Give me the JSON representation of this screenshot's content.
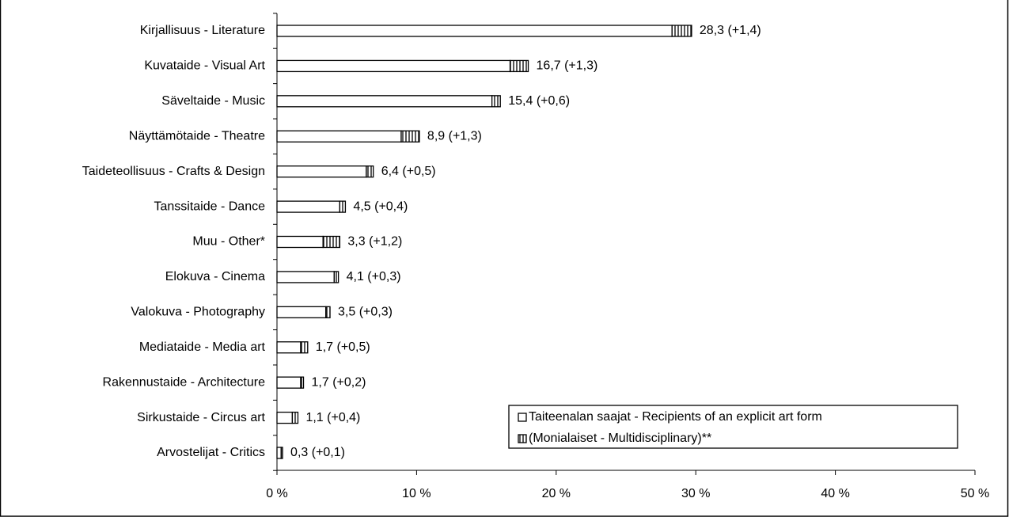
{
  "chart_data": {
    "type": "stacked-bar-horizontal",
    "categories": [
      "Kirjallisuus - Literature",
      "Kuvataide - Visual Art",
      "Säveltaide - Music",
      "Näyttämötaide - Theatre",
      "Taideteollisuus - Crafts & Design",
      "Tanssitaide - Dance",
      "Muu - Other*",
      "Elokuva - Cinema",
      "Valokuva - Photography",
      "Mediataide - Media art",
      "Rakennustaide - Architecture",
      "Sirkustaide - Circus art",
      "Arvostelijat - Critics"
    ],
    "series": [
      {
        "name": "Taiteenalan saajat - Recipients of an explicit art form",
        "color": "#ffffff",
        "values": [
          28.3,
          16.7,
          15.4,
          8.9,
          6.4,
          4.5,
          3.3,
          4.1,
          3.5,
          1.7,
          1.7,
          1.1,
          0.3
        ],
        "value_labels": [
          "28,3 (+1,4)",
          "16,7 (+1,3)",
          "15,4 (+0,6)",
          "8,9 (+1,3)",
          "6,4 (+0,5)",
          "4,5 (+0,4)",
          "3,3 (+1,2)",
          "4,1 (+0,3)",
          "3,5 (+0,3)",
          "1,7 (+0,5)",
          "1,7 (+0,2)",
          "1,1 (+0,4)",
          "0,3 (+0,1)"
        ]
      },
      {
        "name": "(Monialaiset - Multidisciplinary)**",
        "color": "#ffffff",
        "pattern": "vertical-stripes",
        "values": [
          1.4,
          1.3,
          0.6,
          1.3,
          0.5,
          0.4,
          1.2,
          0.3,
          0.3,
          0.5,
          0.2,
          0.4,
          0.1
        ]
      }
    ],
    "xlim": [
      0,
      50
    ],
    "xticks": [
      {
        "value": 0,
        "label": "0 %"
      },
      {
        "value": 10,
        "label": "10 %"
      },
      {
        "value": 20,
        "label": "20 %"
      },
      {
        "value": 30,
        "label": "30 %"
      },
      {
        "value": 40,
        "label": "40 %"
      },
      {
        "value": 50,
        "label": "50 %"
      }
    ],
    "legend": "lower right"
  }
}
